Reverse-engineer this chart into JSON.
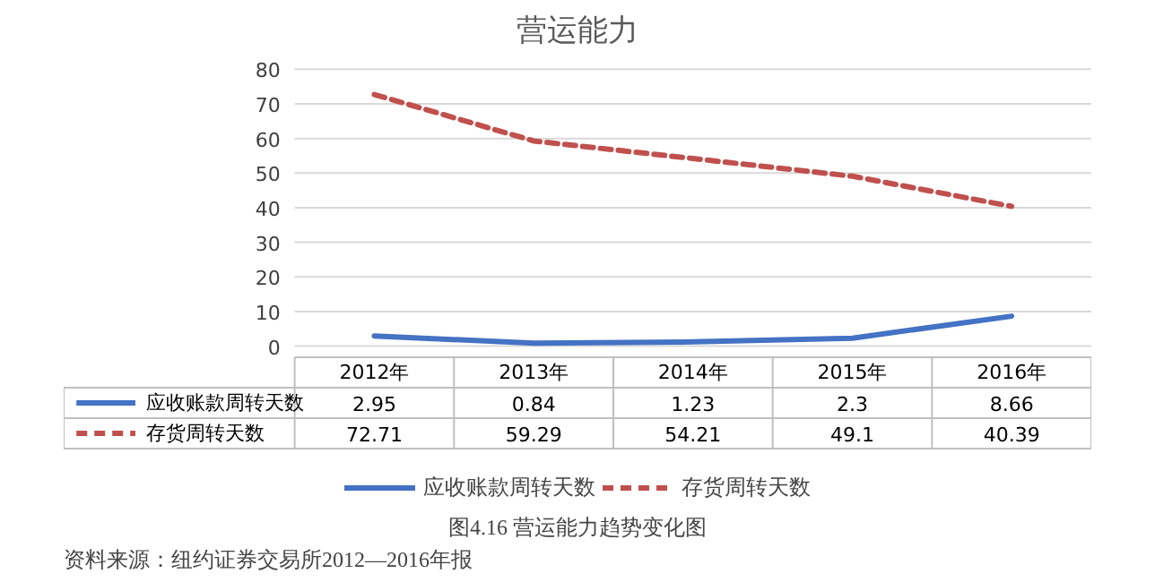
{
  "chart_data": {
    "type": "line",
    "title": "营运能力",
    "categories": [
      "2012年",
      "2013年",
      "2014年",
      "2015年",
      "2016年"
    ],
    "series": [
      {
        "name": "应收账款周转天数",
        "color": "#4472c4",
        "values": [
          2.95,
          0.84,
          1.23,
          2.3,
          8.66
        ],
        "line_style": "solid"
      },
      {
        "name": "存货周转天数",
        "color": "#c0504d",
        "values": [
          72.71,
          59.29,
          54.21,
          49.1,
          40.39
        ],
        "line_style": "dashed"
      }
    ],
    "ylim": [
      0,
      80
    ],
    "yticks": [
      0,
      10,
      20,
      30,
      40,
      50,
      60,
      70,
      80
    ],
    "grid": "y",
    "legend": "bottom",
    "data_labels": true,
    "annotations": [
      "图4.16 营运能力趋势变化图",
      "资料来源：纽约证券交易所2012—2016年报"
    ]
  }
}
